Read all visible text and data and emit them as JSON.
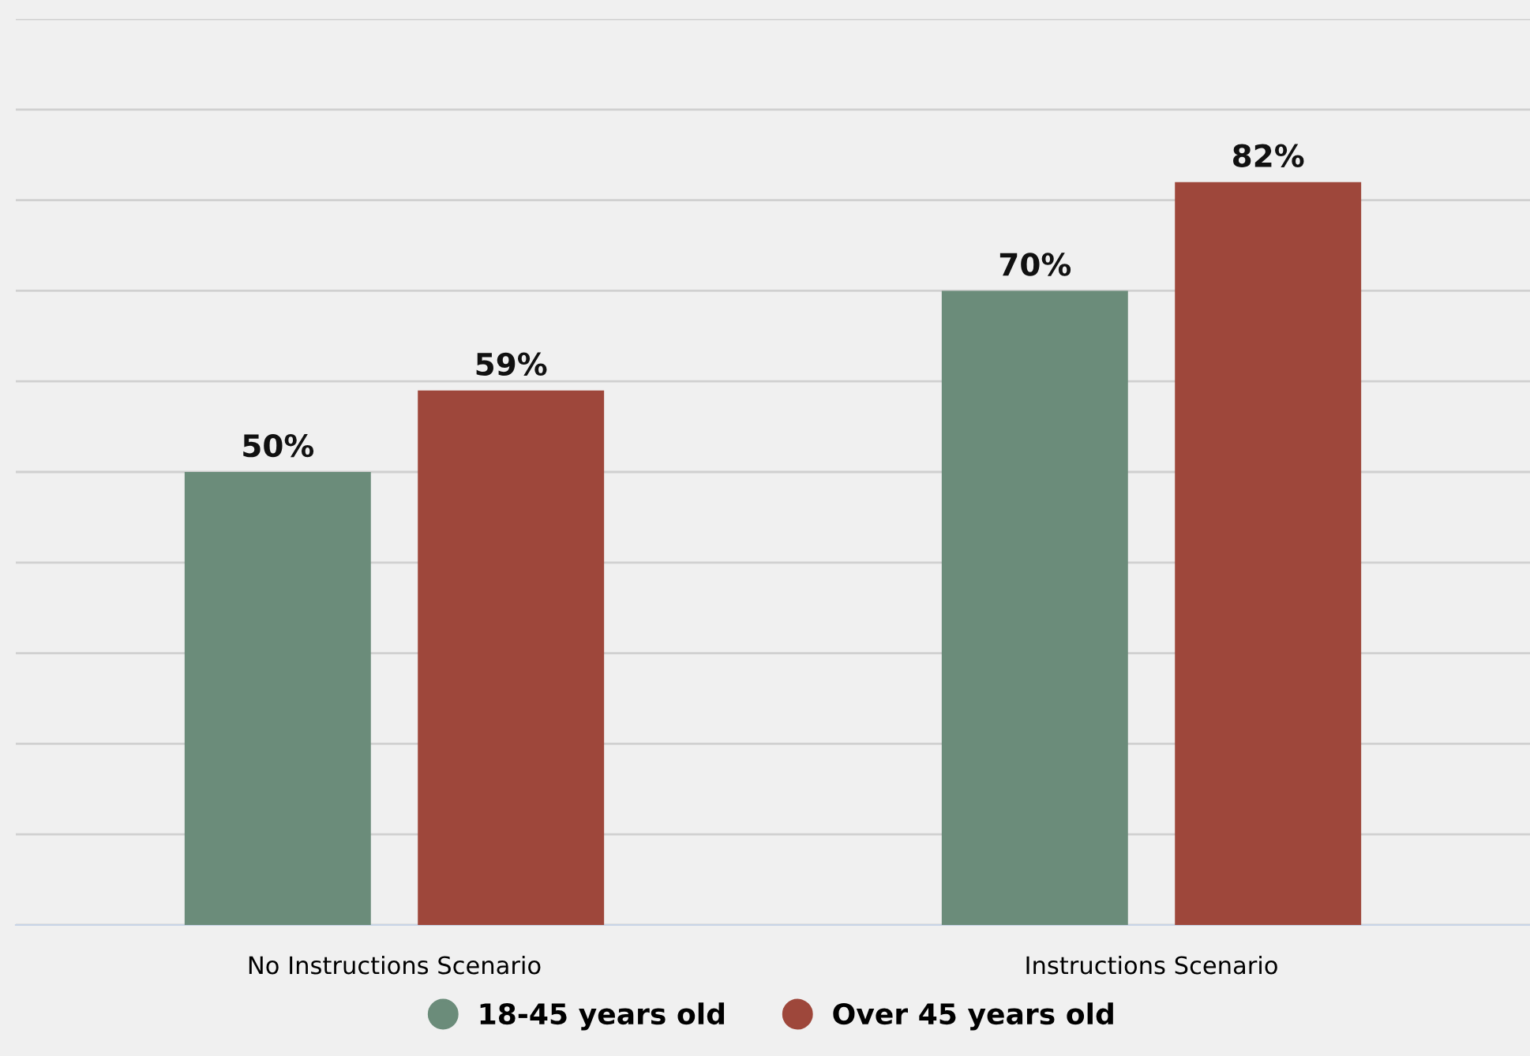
{
  "chart_data": {
    "type": "bar",
    "categories": [
      "No Instructions Scenario",
      "Instructions Scenario"
    ],
    "series": [
      {
        "name": "18-45 years old",
        "color": "#6b8c7a",
        "values": [
          50,
          70
        ],
        "value_labels": [
          "50%",
          "70%"
        ]
      },
      {
        "name": "Over 45 years old",
        "color": "#9e473b",
        "values": [
          59,
          82
        ],
        "value_labels": [
          "59%",
          "82%"
        ]
      }
    ],
    "ylim": [
      0,
      100
    ],
    "yticks": [
      {
        "value": 0,
        "label": null
      },
      {
        "value": 10,
        "label": null
      },
      {
        "value": 20,
        "label": null
      },
      {
        "value": 30,
        "label": null
      },
      {
        "value": 40,
        "label": null
      },
      {
        "value": 50,
        "label": null
      },
      {
        "value": 60,
        "label": null
      },
      {
        "value": 70,
        "label": null
      },
      {
        "value": 80,
        "label": null
      },
      {
        "value": 90,
        "label": null
      },
      {
        "value": 100,
        "label": null
      }
    ],
    "tick_labels": "x",
    "grid": "y",
    "legend": "bottom"
  }
}
